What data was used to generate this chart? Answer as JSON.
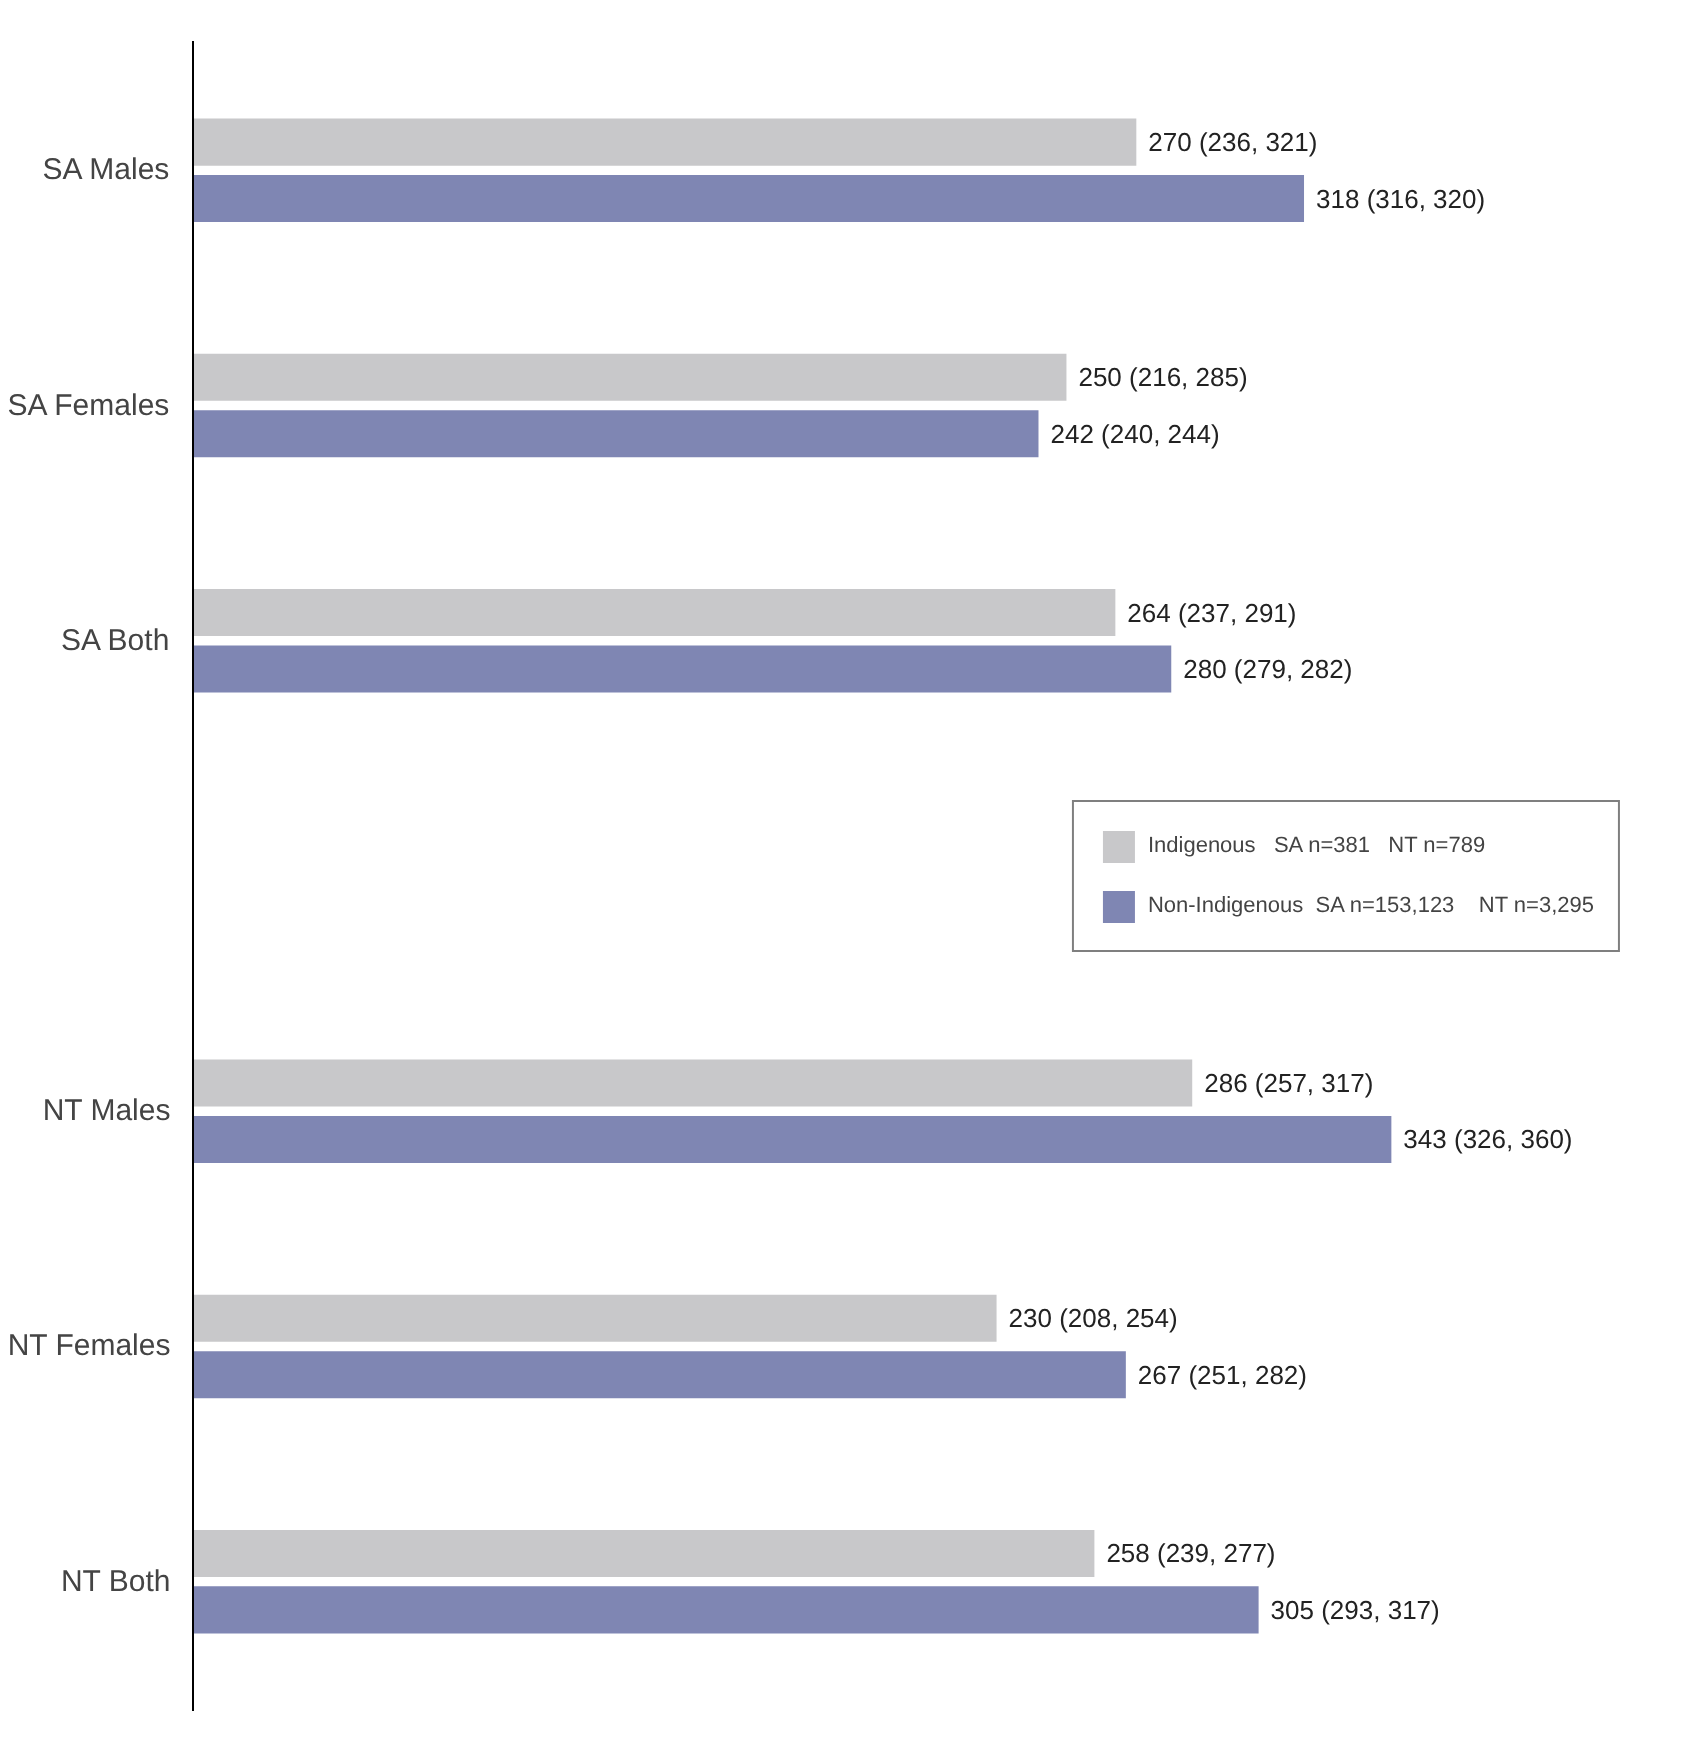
{
  "chart_data": {
    "type": "bar",
    "orientation": "horizontal",
    "categories": [
      "SA Males",
      "SA Females",
      "SA Both",
      null,
      "NT Males",
      "NT Females",
      "NT Both"
    ],
    "series": [
      {
        "name": "Indigenous   SA n=381   NT n=789",
        "color": "#c8c8ca",
        "values": [
          270,
          250,
          264,
          null,
          286,
          230,
          258
        ],
        "value_labels": [
          "270 (236, 321)",
          "250 (216, 285)",
          "264 (237, 291)",
          null,
          "286 (257, 317)",
          "230 (208, 254)",
          "258 (239, 277)"
        ]
      },
      {
        "name": "Non-Indigenous  SA n=153,123    NT n=3,295",
        "color": "#7f86b3",
        "values": [
          318,
          242,
          280,
          null,
          343,
          267,
          305
        ],
        "value_labels": [
          "318 (316, 320)",
          "242 (240, 244)",
          "280 (279, 282)",
          null,
          "343 (326, 360)",
          "267 (251, 282)",
          "305 (293, 317)"
        ]
      }
    ],
    "tick_labels": "y",
    "grid": false,
    "legend": "right"
  }
}
